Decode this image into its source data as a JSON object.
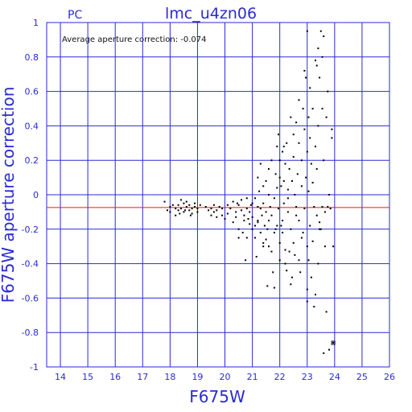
{
  "chart_data": {
    "type": "scatter",
    "title": "lmc_u4zn06",
    "corner_label": "PC",
    "xlabel": "F675W",
    "ylabel": "F675W aperture correction",
    "xlim": [
      13.5,
      26
    ],
    "ylim": [
      -1,
      1
    ],
    "x_ticks": [
      "14",
      "15",
      "16",
      "17",
      "18",
      "19",
      "20",
      "21",
      "22",
      "23",
      "24",
      "25",
      "26"
    ],
    "y_ticks": [
      "-1",
      "-0.8",
      "-0.6",
      "-0.4",
      "-0.2",
      "0",
      "0.2",
      "0.4",
      "0.6",
      "0.8",
      "1"
    ],
    "grid": true,
    "annotation": "Average aperture correction: -0.074",
    "reference_line": {
      "y": -0.074,
      "color": "#e81818"
    },
    "axis_color": "#2a2ad8",
    "point_color": "#000000",
    "points": [
      [
        17.8,
        -0.04
      ],
      [
        17.9,
        -0.09
      ],
      [
        18.0,
        -0.1
      ],
      [
        18.0,
        -0.07
      ],
      [
        18.1,
        -0.06
      ],
      [
        18.2,
        -0.08
      ],
      [
        18.3,
        -0.09
      ],
      [
        18.3,
        -0.06
      ],
      [
        18.4,
        -0.03
      ],
      [
        18.4,
        -0.08
      ],
      [
        18.5,
        -0.05
      ],
      [
        18.5,
        -0.1
      ],
      [
        18.6,
        -0.07
      ],
      [
        18.6,
        -0.04
      ],
      [
        18.7,
        -0.09
      ],
      [
        18.7,
        -0.06
      ],
      [
        18.8,
        -0.08
      ],
      [
        18.8,
        -0.11
      ],
      [
        18.9,
        -0.07
      ],
      [
        18.9,
        -0.05
      ],
      [
        19.0,
        -0.08
      ],
      [
        19.0,
        -0.1
      ],
      [
        19.1,
        -0.06
      ],
      [
        18.2,
        -0.12
      ],
      [
        18.35,
        -0.11
      ],
      [
        18.55,
        -0.09
      ],
      [
        18.75,
        -0.12
      ],
      [
        19.3,
        -0.07
      ],
      [
        19.4,
        -0.09
      ],
      [
        19.5,
        -0.12
      ],
      [
        19.5,
        -0.08
      ],
      [
        19.6,
        -0.1
      ],
      [
        19.6,
        -0.06
      ],
      [
        19.7,
        -0.09
      ],
      [
        19.8,
        -0.07
      ],
      [
        19.9,
        -0.12
      ],
      [
        19.9,
        -0.08
      ],
      [
        20.0,
        -0.14
      ],
      [
        19.7,
        -0.13
      ],
      [
        20.1,
        -0.11
      ],
      [
        20.1,
        -0.06
      ],
      [
        20.2,
        -0.08
      ],
      [
        20.3,
        -0.16
      ],
      [
        20.3,
        -0.04
      ],
      [
        20.4,
        -0.1
      ],
      [
        20.4,
        -0.13
      ],
      [
        20.5,
        -0.06
      ],
      [
        20.5,
        -0.2
      ],
      [
        20.5,
        -0.25
      ],
      [
        20.6,
        -0.09
      ],
      [
        20.6,
        -0.03
      ],
      [
        20.7,
        -0.15
      ],
      [
        20.7,
        -0.12
      ],
      [
        20.75,
        -0.38
      ],
      [
        20.8,
        -0.02
      ],
      [
        20.8,
        -0.25
      ],
      [
        20.8,
        -0.08
      ],
      [
        20.9,
        -0.17
      ],
      [
        20.9,
        -0.1
      ],
      [
        21.0,
        -0.05
      ],
      [
        21.0,
        -0.2
      ],
      [
        21.0,
        -0.13
      ],
      [
        21.1,
        -0.02
      ],
      [
        21.1,
        -0.18
      ],
      [
        21.1,
        -0.25
      ],
      [
        21.15,
        -0.36
      ],
      [
        21.2,
        0.1
      ],
      [
        21.2,
        -0.07
      ],
      [
        21.2,
        -0.15
      ],
      [
        21.25,
        0.02
      ],
      [
        21.3,
        -0.08
      ],
      [
        21.3,
        -0.22
      ],
      [
        21.3,
        0.18
      ],
      [
        21.35,
        -0.12
      ],
      [
        21.4,
        -0.05
      ],
      [
        21.4,
        -0.3
      ],
      [
        21.4,
        0.05
      ],
      [
        21.45,
        -0.18
      ],
      [
        21.5,
        -0.1
      ],
      [
        21.5,
        -0.26
      ],
      [
        21.5,
        0.08
      ],
      [
        21.55,
        -0.2
      ],
      [
        21.55,
        -0.53
      ],
      [
        21.6,
        0.0
      ],
      [
        21.6,
        -0.15
      ],
      [
        21.6,
        0.15
      ],
      [
        21.65,
        -0.07
      ],
      [
        21.7,
        -0.33
      ],
      [
        21.7,
        -0.12
      ],
      [
        21.7,
        0.2
      ],
      [
        21.75,
        -0.45
      ],
      [
        21.8,
        -0.02
      ],
      [
        21.8,
        -0.22
      ],
      [
        21.8,
        -0.54
      ],
      [
        21.85,
        0.12
      ],
      [
        21.9,
        -0.18
      ],
      [
        21.9,
        0.04
      ],
      [
        21.9,
        0.28
      ],
      [
        21.95,
        -0.08
      ],
      [
        22.0,
        -0.28
      ],
      [
        22.0,
        0.1
      ],
      [
        22.0,
        -0.38
      ],
      [
        22.05,
        0.05
      ],
      [
        22.1,
        -0.15
      ],
      [
        22.1,
        0.25
      ],
      [
        22.1,
        -0.22
      ],
      [
        22.15,
        -0.05
      ],
      [
        22.2,
        0.18
      ],
      [
        22.2,
        -0.32
      ],
      [
        22.2,
        -0.4
      ],
      [
        22.25,
        0.3
      ],
      [
        22.3,
        -0.1
      ],
      [
        22.3,
        0.03
      ],
      [
        22.35,
        0.15
      ],
      [
        22.4,
        -0.2
      ],
      [
        22.4,
        0.45
      ],
      [
        22.4,
        -0.52
      ],
      [
        22.45,
        0.08
      ],
      [
        22.5,
        0.22
      ],
      [
        22.5,
        0.35
      ],
      [
        22.5,
        -0.28
      ],
      [
        22.55,
        0.0
      ],
      [
        22.6,
        0.42
      ],
      [
        22.6,
        -0.12
      ],
      [
        22.65,
        0.12
      ],
      [
        22.7,
        0.3
      ],
      [
        22.7,
        -0.38
      ],
      [
        22.7,
        0.55
      ],
      [
        22.75,
        -0.45
      ],
      [
        22.8,
        0.05
      ],
      [
        22.8,
        -0.25
      ],
      [
        22.8,
        0.2
      ],
      [
        22.85,
        0.5
      ],
      [
        22.9,
        -0.08
      ],
      [
        22.9,
        0.38
      ],
      [
        22.95,
        0.1
      ],
      [
        23.0,
        -0.3
      ],
      [
        23.0,
        0.25
      ],
      [
        23.0,
        -0.55
      ],
      [
        23.0,
        -0.62
      ],
      [
        23.05,
        0.45
      ],
      [
        23.05,
        0.02
      ],
      [
        23.1,
        -0.18
      ],
      [
        23.1,
        0.33
      ],
      [
        23.15,
        0.18
      ],
      [
        23.15,
        -0.48
      ],
      [
        23.2,
        0.07
      ],
      [
        23.25,
        -0.07
      ],
      [
        23.25,
        -0.65
      ],
      [
        23.3,
        0.28
      ],
      [
        23.3,
        -0.58
      ],
      [
        23.35,
        0.15
      ],
      [
        23.35,
        0.75
      ],
      [
        23.4,
        -0.4
      ],
      [
        23.4,
        0.4
      ],
      [
        23.45,
        -0.2
      ],
      [
        23.45,
        0.68
      ],
      [
        23.5,
        0.95
      ],
      [
        23.55,
        0.5
      ],
      [
        23.55,
        -0.07
      ],
      [
        23.6,
        -0.92
      ],
      [
        23.6,
        0.2
      ],
      [
        23.65,
        -0.3
      ],
      [
        23.7,
        0.45
      ],
      [
        23.75,
        0.6
      ],
      [
        23.8,
        -0.9
      ],
      [
        23.85,
        -0.08
      ],
      [
        23.9,
        0.38
      ],
      [
        23.95,
        -0.3
      ],
      [
        23.95,
        -0.86
      ],
      [
        23.4,
        0.85
      ],
      [
        23.3,
        0.78
      ],
      [
        23.2,
        0.5
      ],
      [
        23.1,
        0.62
      ],
      [
        22.95,
        0.68
      ],
      [
        23.0,
        0.95
      ],
      [
        22.9,
        0.72
      ],
      [
        23.55,
        0.8
      ],
      [
        23.6,
        0.92
      ],
      [
        23.65,
        -0.1
      ],
      [
        23.7,
        -0.68
      ],
      [
        23.8,
        0.0
      ],
      [
        23.75,
        -0.07
      ],
      [
        23.9,
        0.33
      ],
      [
        22.35,
        -0.33
      ],
      [
        22.15,
        0.28
      ],
      [
        22.0,
        0.2
      ],
      [
        21.85,
        -0.2
      ],
      [
        21.95,
        0.35
      ],
      [
        21.6,
        -0.3
      ],
      [
        21.4,
        -0.28
      ],
      [
        21.2,
        -0.16
      ],
      [
        20.95,
        -0.06
      ],
      [
        20.85,
        -0.14
      ],
      [
        20.65,
        -0.22
      ],
      [
        20.45,
        -0.05
      ],
      [
        22.25,
        -0.44
      ],
      [
        22.45,
        -0.48
      ],
      [
        22.6,
        -0.07
      ],
      [
        22.7,
        -0.15
      ],
      [
        22.85,
        -0.22
      ],
      [
        23.2,
        -0.27
      ],
      [
        23.35,
        -0.12
      ],
      [
        23.45,
        -0.16
      ],
      [
        23.5,
        -0.2
      ],
      [
        23.05,
        -0.38
      ],
      [
        22.55,
        -0.35
      ],
      [
        22.3,
        -0.02
      ],
      [
        22.15,
        0.08
      ],
      [
        22.05,
        -0.18
      ]
    ]
  }
}
